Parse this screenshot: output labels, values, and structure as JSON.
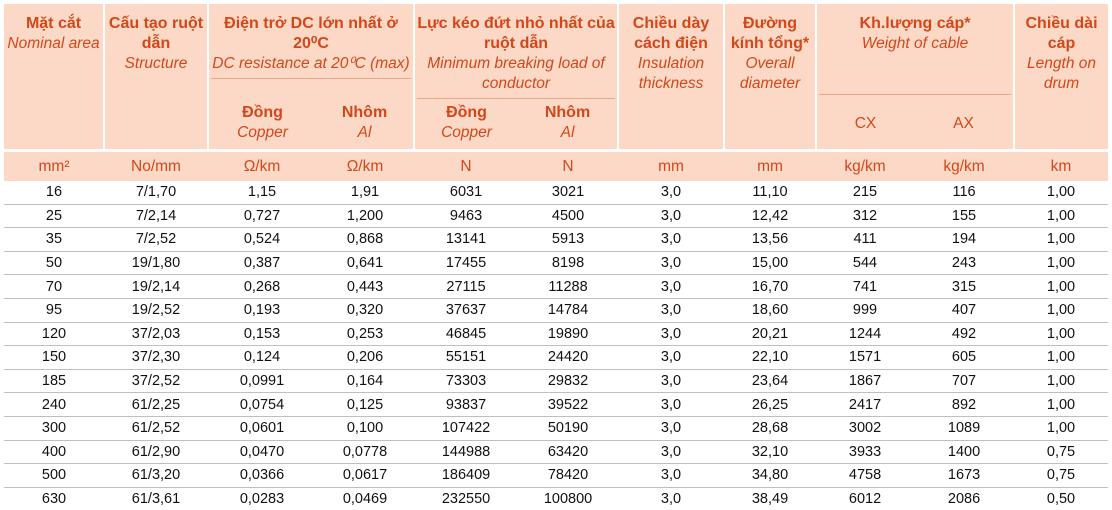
{
  "headers": {
    "area": {
      "vn": "Mặt cắt",
      "en": "Nominal area"
    },
    "structure": {
      "vn": "Cấu tạo ruột dẫn",
      "en": "Structure"
    },
    "resistance": {
      "vn": "Điện trở DC lớn nhất ở 20⁰C",
      "en": "DC resistance at 20⁰C (max)"
    },
    "breaking": {
      "vn": "Lực kéo đứt nhỏ nhất của ruột dẫn",
      "en": "Minimum breaking load of conductor"
    },
    "insulation": {
      "vn": "Chiều dày cách điện",
      "en": "Insulation thickness"
    },
    "diameter": {
      "vn": "Đường kính tổng*",
      "en": "Overall diameter"
    },
    "weight": {
      "vn": "Kh.lượng cáp*",
      "en": "Weight of cable"
    },
    "length": {
      "vn": "Chiều dài cáp",
      "en": "Length on drum"
    },
    "copper": {
      "vn": "Đồng",
      "en": "Copper"
    },
    "aluminium": {
      "vn": "Nhôm",
      "en": "Al"
    },
    "cx": "CX",
    "ax": "AX"
  },
  "units": [
    "mm²",
    "No/mm",
    "Ω/km",
    "Ω/km",
    "N",
    "N",
    "mm",
    "mm",
    "kg/km",
    "kg/km",
    "km"
  ],
  "rows": [
    [
      "16",
      "7/1,70",
      "1,15",
      "1,91",
      "6031",
      "3021",
      "3,0",
      "11,10",
      "215",
      "116",
      "1,00"
    ],
    [
      "25",
      "7/2,14",
      "0,727",
      "1,200",
      "9463",
      "4500",
      "3,0",
      "12,42",
      "312",
      "155",
      "1,00"
    ],
    [
      "35",
      "7/2,52",
      "0,524",
      "0,868",
      "13141",
      "5913",
      "3,0",
      "13,56",
      "411",
      "194",
      "1,00"
    ],
    [
      "50",
      "19/1,80",
      "0,387",
      "0,641",
      "17455",
      "8198",
      "3,0",
      "15,00",
      "544",
      "243",
      "1,00"
    ],
    [
      "70",
      "19/2,14",
      "0,268",
      "0,443",
      "27115",
      "11288",
      "3,0",
      "16,70",
      "741",
      "315",
      "1,00"
    ],
    [
      "95",
      "19/2,52",
      "0,193",
      "0,320",
      "37637",
      "14784",
      "3,0",
      "18,60",
      "999",
      "407",
      "1,00"
    ],
    [
      "120",
      "37/2,03",
      "0,153",
      "0,253",
      "46845",
      "19890",
      "3,0",
      "20,21",
      "1244",
      "492",
      "1,00"
    ],
    [
      "150",
      "37/2,30",
      "0,124",
      "0,206",
      "55151",
      "24420",
      "3,0",
      "22,10",
      "1571",
      "605",
      "1,00"
    ],
    [
      "185",
      "37/2,52",
      "0,0991",
      "0,164",
      "73303",
      "29832",
      "3,0",
      "23,64",
      "1867",
      "707",
      "1,00"
    ],
    [
      "240",
      "61/2,25",
      "0,0754",
      "0,125",
      "93837",
      "39522",
      "3,0",
      "26,25",
      "2417",
      "892",
      "1,00"
    ],
    [
      "300",
      "61/2,52",
      "0,0601",
      "0,100",
      "107422",
      "50190",
      "3,0",
      "28,68",
      "3002",
      "1089",
      "1,00"
    ],
    [
      "400",
      "61/2,90",
      "0,0470",
      "0,0778",
      "144988",
      "63420",
      "3,0",
      "32,10",
      "3933",
      "1400",
      "0,75"
    ],
    [
      "500",
      "61/3,20",
      "0,0366",
      "0,0617",
      "186409",
      "78420",
      "3,0",
      "34,80",
      "4758",
      "1673",
      "0,75"
    ],
    [
      "630",
      "61/3,61",
      "0,0283",
      "0,0469",
      "232550",
      "100800",
      "3,0",
      "38,49",
      "6012",
      "2086",
      "0,50"
    ]
  ]
}
